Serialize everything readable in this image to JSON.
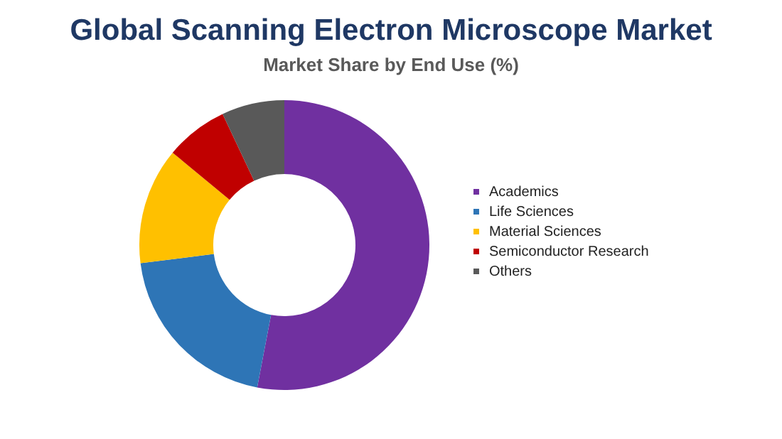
{
  "chart_data": {
    "type": "donut",
    "title": "Global Scanning Electron Microscope Market",
    "subtitle": "Market Share by End Use (%)",
    "categories": [
      "Academics",
      "Life Sciences",
      "Material Sciences",
      "Semiconductor Research",
      "Others"
    ],
    "values": [
      53,
      20,
      13,
      7,
      7
    ],
    "colors": [
      "#7030a0",
      "#2e75b6",
      "#ffc000",
      "#c00000",
      "#595959"
    ],
    "legend": "right"
  }
}
